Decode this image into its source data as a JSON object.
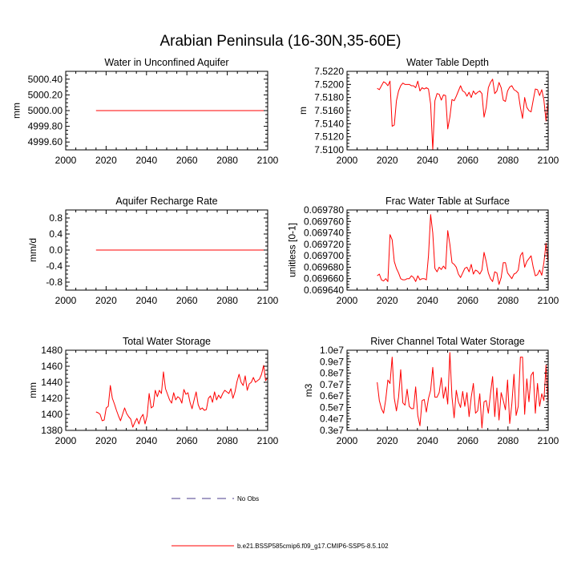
{
  "figure": {
    "title": "Arabian Peninsula (16-30N,35-60E)",
    "legend": [
      {
        "label": "No Obs",
        "style": "dashed",
        "color": "#4b3c8c"
      },
      {
        "label": "b.e21.BSSP585cmip6.f09_g17.CMIP6-SSP5-8.5.102",
        "style": "solid",
        "color": "#ff0000"
      }
    ]
  },
  "chart_data": [
    {
      "type": "line",
      "title": "Water in Unconfined Aquifer",
      "ylabel": "mm",
      "xlim": [
        2000,
        2100
      ],
      "ylim": [
        4999.5,
        5000.5
      ],
      "x_ticks": [
        2000,
        2020,
        2040,
        2060,
        2080,
        2100
      ],
      "y_ticks": [
        4999.6,
        4999.8,
        5000.0,
        5000.2,
        5000.4
      ],
      "y_tick_labels": [
        "4999.60",
        "4999.80",
        "5000.00",
        "5000.20",
        "5000.40"
      ],
      "series": [
        {
          "color": "#ff0000",
          "x_start": 2015,
          "x_end": 2100,
          "values": [
            5000.0,
            5000.0
          ]
        }
      ]
    },
    {
      "type": "line",
      "title": "Water Table Depth",
      "ylabel": "m",
      "xlim": [
        2000,
        2100
      ],
      "ylim": [
        7.51,
        7.522
      ],
      "x_ticks": [
        2000,
        2020,
        2040,
        2060,
        2080,
        2100
      ],
      "y_ticks": [
        7.51,
        7.512,
        7.514,
        7.516,
        7.518,
        7.52,
        7.522
      ],
      "y_tick_labels": [
        "7.5100",
        "7.5120",
        "7.5140",
        "7.5160",
        "7.5180",
        "7.5200",
        "7.5220"
      ],
      "series": [
        {
          "color": "#ff0000",
          "x_start": 2015,
          "x_end": 2100,
          "values": [
            7.5194,
            7.5192,
            7.5198,
            7.5204,
            7.5202,
            7.5198,
            7.5205,
            7.5136,
            7.5138,
            7.5175,
            7.519,
            7.5198,
            7.5202,
            7.52,
            7.52,
            7.52,
            7.5198,
            7.5198,
            7.5195,
            7.5205,
            7.519,
            7.5195,
            7.5193,
            7.5195,
            7.5193,
            7.517,
            7.51,
            7.5175,
            7.5186,
            7.5185,
            7.5176,
            7.5184,
            7.5183,
            7.5132,
            7.515,
            7.5177,
            7.5175,
            7.5182,
            7.519,
            7.5198,
            7.519,
            7.5188,
            7.5182,
            7.5188,
            7.518,
            7.519,
            7.5185,
            7.5188,
            7.519,
            7.5186,
            7.515,
            7.5165,
            7.5195,
            7.5203,
            7.5208,
            7.5186,
            7.519,
            7.5203,
            7.5195,
            7.5176,
            7.5174,
            7.519,
            7.5196,
            7.5198,
            7.5192,
            7.519,
            7.5187,
            7.5165,
            7.5148,
            7.518,
            7.5165,
            7.516,
            7.5158,
            7.5176,
            7.5193,
            7.5192,
            7.5183,
            7.5192,
            7.5176,
            7.5144,
            7.5175
          ]
        }
      ]
    },
    {
      "type": "line",
      "title": "Aquifer Recharge Rate",
      "ylabel": "mm/d",
      "xlim": [
        2000,
        2100
      ],
      "ylim": [
        -1.0,
        1.0
      ],
      "x_ticks": [
        2000,
        2020,
        2040,
        2060,
        2080,
        2100
      ],
      "y_ticks": [
        -0.8,
        -0.4,
        0.0,
        0.4,
        0.8
      ],
      "y_tick_labels": [
        "-0.8",
        "-0.4",
        "0.0",
        "0.4",
        "0.8"
      ],
      "series": [
        {
          "color": "#ff0000",
          "x_start": 2015,
          "x_end": 2100,
          "values": [
            0.0,
            0.0
          ]
        }
      ]
    },
    {
      "type": "line",
      "title": "Frac Water Table at Surface",
      "ylabel": "unitless [0-1]",
      "xlim": [
        2000,
        2100
      ],
      "ylim": [
        0.06964,
        0.06978
      ],
      "x_ticks": [
        2000,
        2020,
        2040,
        2060,
        2080,
        2100
      ],
      "y_ticks": [
        0.06964,
        0.06966,
        0.06968,
        0.0697,
        0.06972,
        0.06974,
        0.06976,
        0.06978
      ],
      "y_tick_labels": [
        "0.069640",
        "0.069660",
        "0.069680",
        "0.069700",
        "0.069720",
        "0.069740",
        "0.069760",
        "0.069780"
      ],
      "series": [
        {
          "color": "#ff0000",
          "x_start": 2015,
          "x_end": 2100,
          "values": [
            0.069665,
            0.069668,
            0.069658,
            0.069656,
            0.06966,
            0.069655,
            0.069737,
            0.069728,
            0.06969,
            0.069678,
            0.06967,
            0.06966,
            0.069658,
            0.069658,
            0.06966,
            0.06966,
            0.069665,
            0.069662,
            0.069655,
            0.069665,
            0.069658,
            0.06966,
            0.06966,
            0.069658,
            0.0697,
            0.069772,
            0.06974,
            0.069678,
            0.069672,
            0.06968,
            0.069676,
            0.069682,
            0.069677,
            0.069744,
            0.06972,
            0.069688,
            0.069685,
            0.06968,
            0.069668,
            0.069662,
            0.06967,
            0.069678,
            0.06968,
            0.069672,
            0.069685,
            0.069668,
            0.069675,
            0.069673,
            0.069668,
            0.069675,
            0.069706,
            0.06969,
            0.06967,
            0.06966,
            0.069655,
            0.069672,
            0.06967,
            0.06965,
            0.069662,
            0.069688,
            0.069688,
            0.06967,
            0.069665,
            0.06966,
            0.069668,
            0.06967,
            0.069675,
            0.0697,
            0.069706,
            0.06968,
            0.06969,
            0.069695,
            0.0697,
            0.06968,
            0.069665,
            0.069667,
            0.069675,
            0.069666,
            0.069688,
            0.069722,
            0.069688
          ]
        }
      ]
    },
    {
      "type": "line",
      "title": "Total Water Storage",
      "ylabel": "mm",
      "xlim": [
        2000,
        2100
      ],
      "ylim": [
        1380,
        1480
      ],
      "x_ticks": [
        2000,
        2020,
        2040,
        2060,
        2080,
        2100
      ],
      "y_ticks": [
        1380,
        1400,
        1420,
        1440,
        1460,
        1480
      ],
      "y_tick_labels": [
        "1380",
        "1400",
        "1420",
        "1440",
        "1460",
        "1480"
      ],
      "series": [
        {
          "color": "#ff0000",
          "x_start": 2015,
          "x_end": 2100,
          "values": [
            1403,
            1402,
            1400,
            1392,
            1393,
            1408,
            1410,
            1436,
            1420,
            1413,
            1405,
            1398,
            1392,
            1400,
            1408,
            1401,
            1397,
            1394,
            1384,
            1390,
            1395,
            1388,
            1396,
            1400,
            1388,
            1398,
            1426,
            1408,
            1410,
            1430,
            1422,
            1430,
            1426,
            1453,
            1432,
            1425,
            1418,
            1414,
            1427,
            1418,
            1422,
            1420,
            1414,
            1431,
            1425,
            1427,
            1415,
            1407,
            1418,
            1428,
            1412,
            1406,
            1408,
            1405,
            1406,
            1420,
            1423,
            1415,
            1428,
            1418,
            1424,
            1420,
            1426,
            1430,
            1428,
            1426,
            1432,
            1420,
            1428,
            1441,
            1450,
            1440,
            1436,
            1448,
            1430,
            1438,
            1440,
            1446,
            1440,
            1442,
            1444,
            1450,
            1461,
            1442,
            1446
          ]
        }
      ]
    },
    {
      "type": "line",
      "title": "River Channel Total Water Storage",
      "ylabel": "m3",
      "xlim": [
        2000,
        2100
      ],
      "ylim": [
        3000000,
        10000000
      ],
      "x_ticks": [
        2000,
        2020,
        2040,
        2060,
        2080,
        2100
      ],
      "y_ticks": [
        3000000,
        4000000,
        5000000,
        6000000,
        7000000,
        8000000,
        9000000,
        10000000
      ],
      "y_tick_labels": [
        "0.3e7",
        "0.4e7",
        "0.5e7",
        "0.6e7",
        "0.7e7",
        "0.8e7",
        "0.9e7",
        "1.0e7"
      ],
      "series": [
        {
          "color": "#ff0000",
          "x_start": 2015,
          "x_end": 2100,
          "values": [
            7200000,
            5600000,
            4900000,
            4500000,
            5700000,
            7400000,
            7100000,
            9400000,
            5800000,
            4700000,
            5900000,
            8300000,
            5400000,
            5200000,
            6600000,
            5100000,
            4900000,
            4900000,
            6800000,
            4300000,
            3400000,
            5600000,
            5700000,
            4600000,
            5800000,
            6500000,
            8500000,
            5900000,
            5900000,
            6300000,
            7600000,
            5800000,
            6800000,
            5300000,
            9800000,
            5900000,
            4100000,
            6500000,
            5500000,
            5000000,
            6400000,
            5100000,
            6300000,
            4200000,
            5900000,
            7100000,
            4500000,
            4700000,
            6200000,
            3200000,
            5500000,
            5600000,
            4500000,
            6200000,
            7700000,
            4200000,
            6700000,
            3900000,
            6300000,
            5600000,
            4800000,
            7400000,
            3600000,
            5300000,
            7900000,
            4300000,
            5100000,
            9400000,
            9400000,
            4400000,
            7500000,
            5500000,
            7800000,
            8100000,
            4500000,
            7100000,
            5100000,
            6200000,
            5600000,
            8700000,
            5300000
          ]
        }
      ]
    }
  ]
}
